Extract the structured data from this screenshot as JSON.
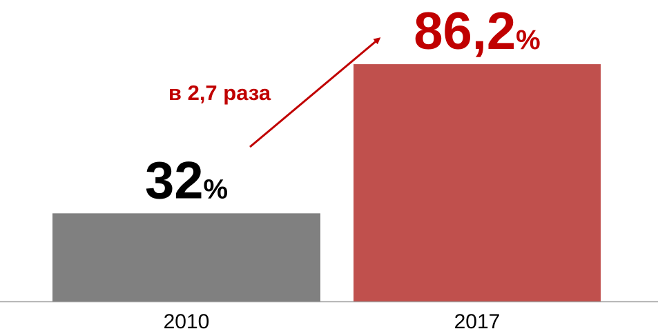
{
  "chart_data": {
    "type": "bar",
    "categories": [
      "2010",
      "2017"
    ],
    "values": [
      32,
      86.2
    ],
    "value_labels": [
      "32%",
      "86,2%"
    ],
    "colors": [
      "#808080",
      "#c0504d"
    ],
    "label_colors": [
      "#000000",
      "#c00000"
    ],
    "annotation": "в 2,7 раза"
  }
}
